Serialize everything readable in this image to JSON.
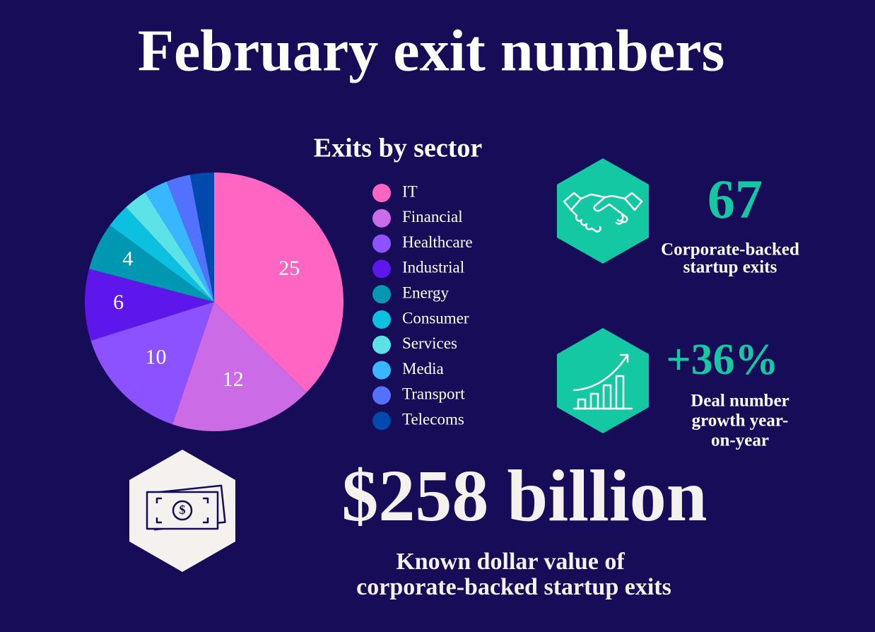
{
  "title": "February exit numbers",
  "chart_data": {
    "type": "pie",
    "title": "Exits by sector",
    "categories": [
      "IT",
      "Financial",
      "Healthcare",
      "Industrial",
      "Energy",
      "Consumer",
      "Services",
      "Media",
      "Transport",
      "Telecoms"
    ],
    "values": [
      25,
      12,
      10,
      6,
      4,
      2,
      2,
      2,
      2,
      2
    ],
    "colors": [
      "#ff66c4",
      "#cb6ce6",
      "#8c52ff",
      "#5e17eb",
      "#0097b2",
      "#0cc0df",
      "#5ce1e6",
      "#38b6ff",
      "#5271ff",
      "#004aad"
    ]
  },
  "stats": [
    {
      "value": "67",
      "caption": [
        "Corporate-backed",
        "startup exits"
      ]
    },
    {
      "value": "+36%",
      "caption": [
        "Deal number",
        "growth year-",
        "on-year"
      ]
    },
    {
      "value": "$258 billion",
      "caption": [
        "Known dollar value of",
        "corporate-backed startup exits"
      ]
    }
  ]
}
